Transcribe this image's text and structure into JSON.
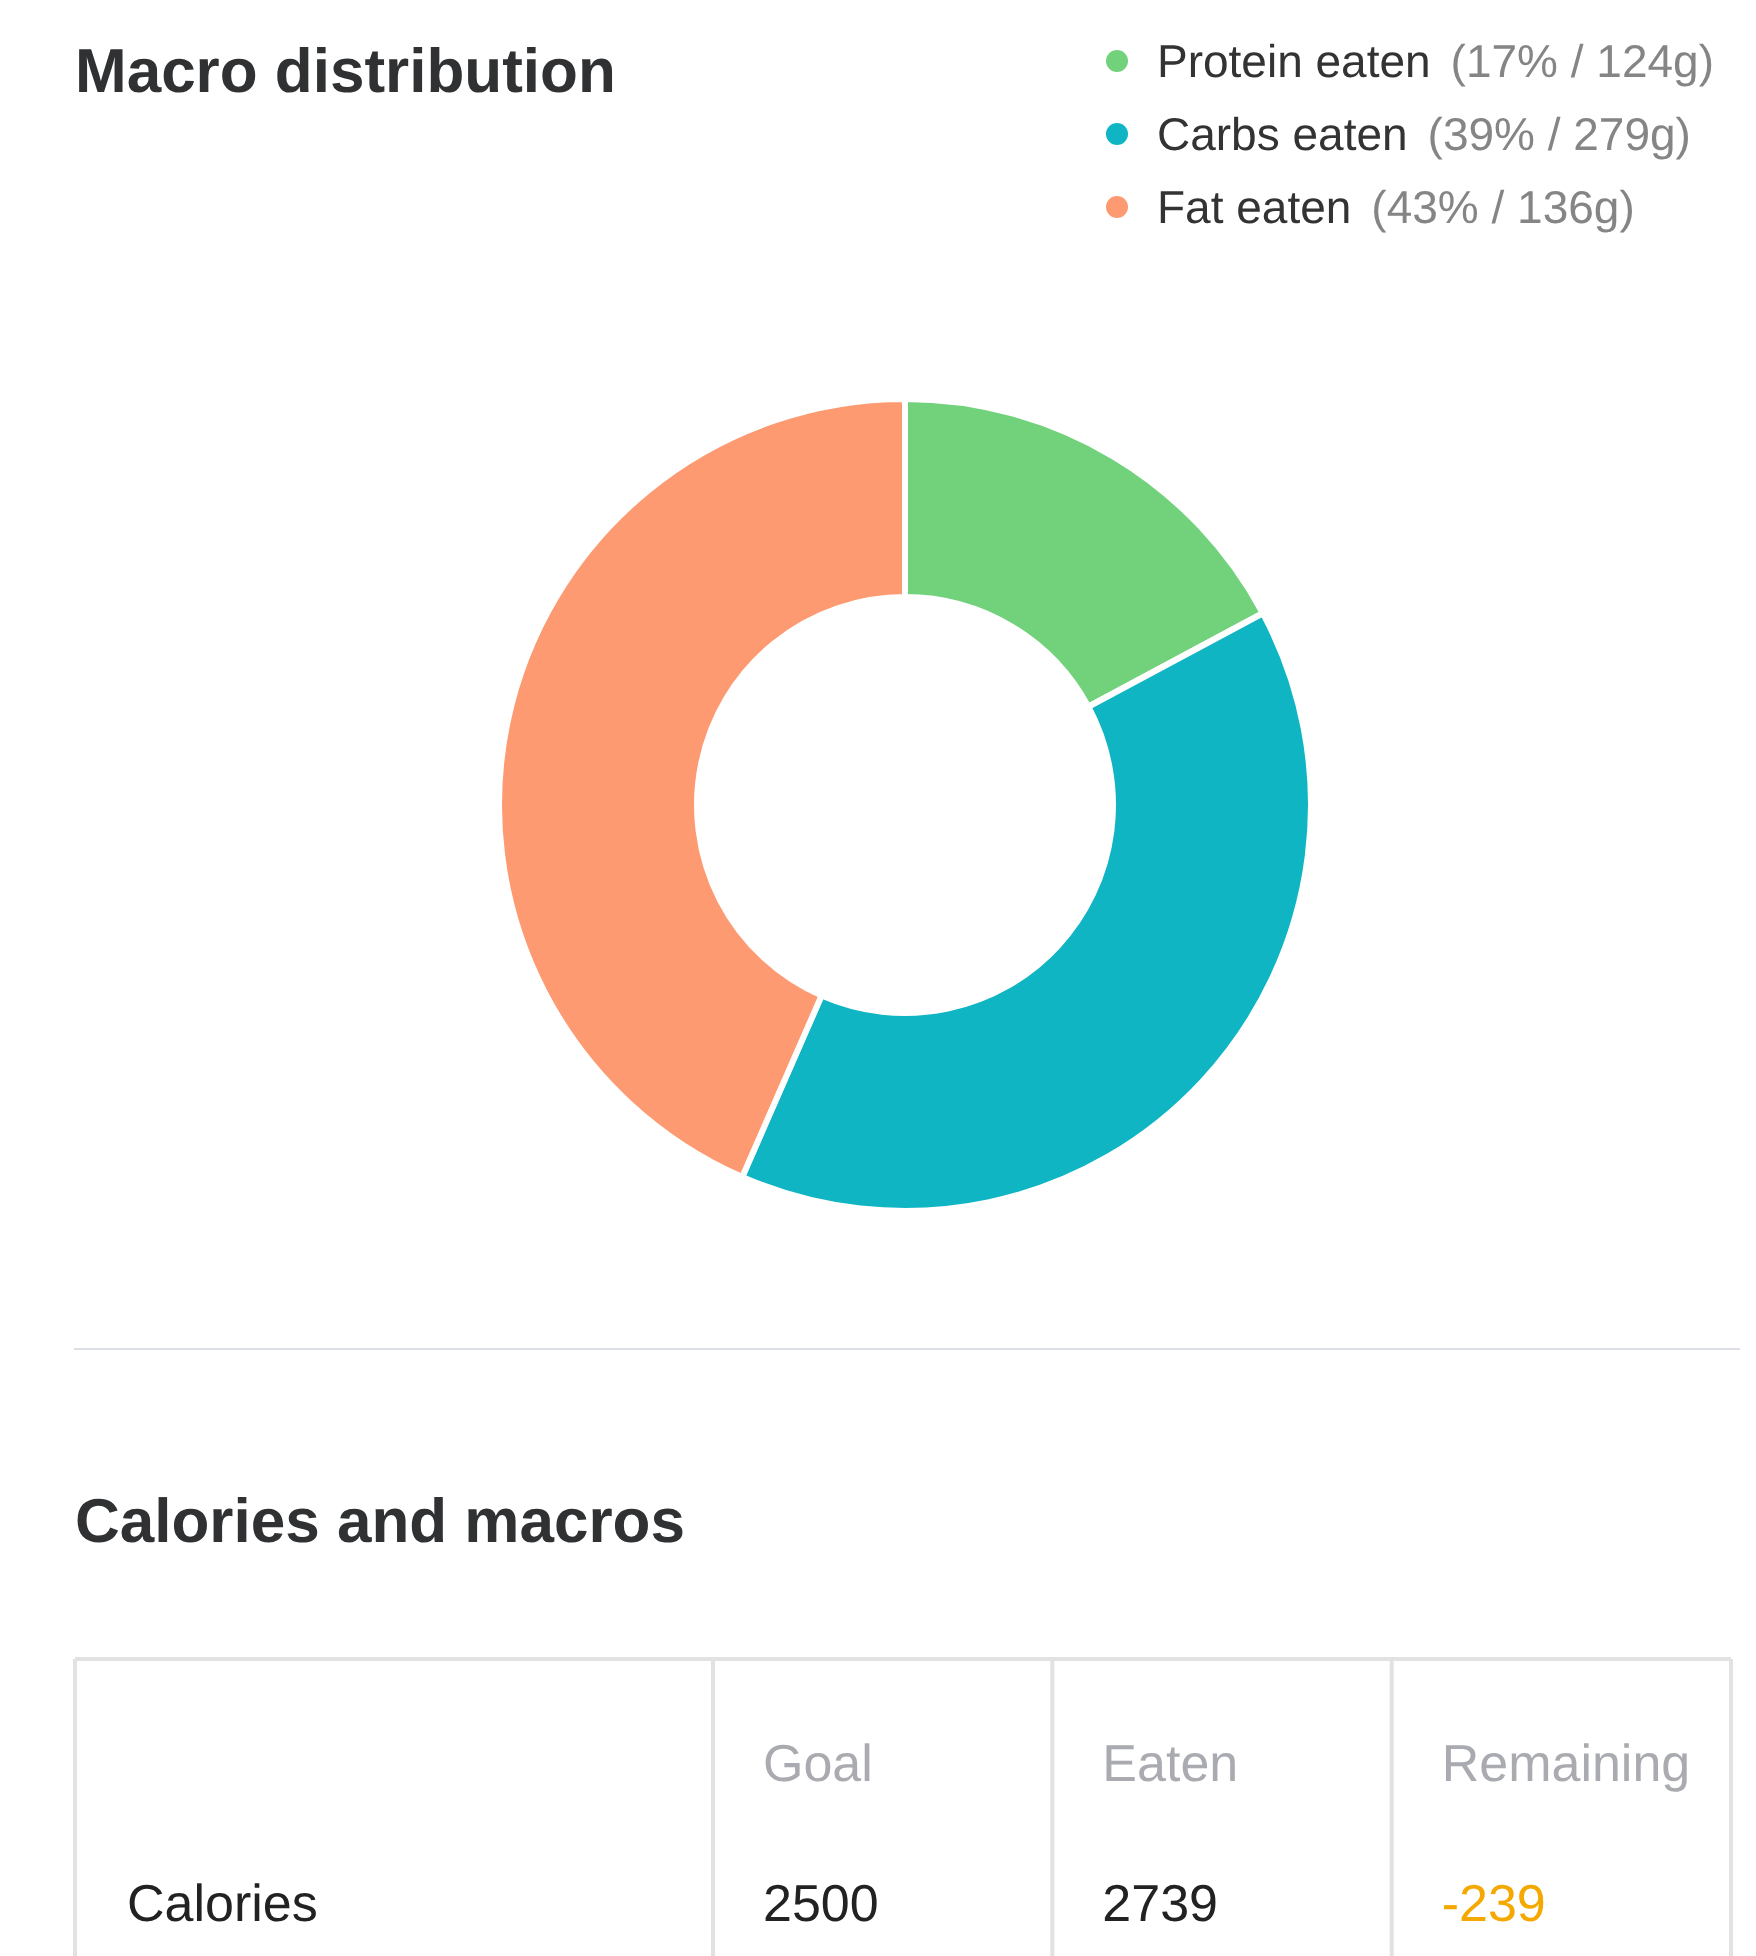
{
  "chart_data": [
    {
      "type": "donut",
      "title": "Macro distribution",
      "categories": [
        "Protein eaten",
        "Carbs eaten",
        "Fat eaten"
      ],
      "values": [
        17,
        39,
        43
      ],
      "colors": [
        "#72d27c",
        "#10b5c4",
        "#fd9a72"
      ],
      "value_labels": [
        "(17% / 124g)",
        "(39% / 279g)",
        "(43% / 136g)"
      ],
      "legend": "top right"
    },
    {
      "type": "other",
      "title": "Calories and macros",
      "categories": [
        "Goal",
        "Eaten",
        "Remaining"
      ],
      "series": [
        {
          "name": "Calories",
          "values": [
            2500,
            2739,
            -239
          ]
        }
      ],
      "data_labels": true
    }
  ]
}
